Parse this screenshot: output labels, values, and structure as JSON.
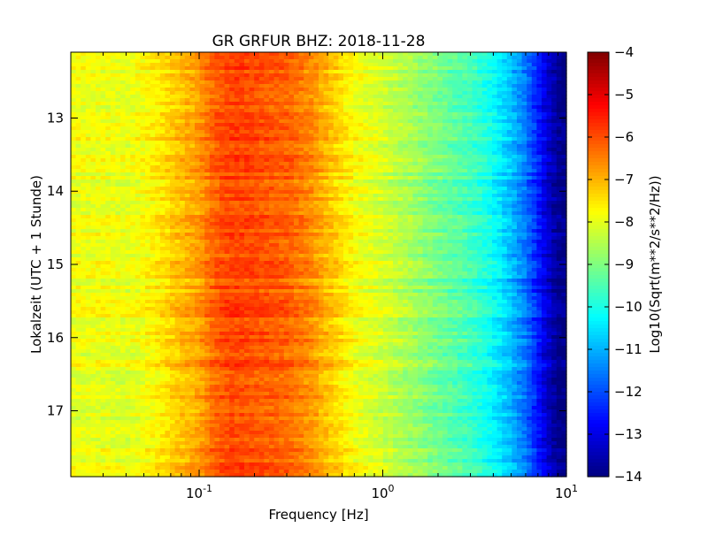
{
  "chart_data": {
    "type": "heatmap",
    "title": "GR GRFUR BHZ: 2018-11-28",
    "xlabel": "Frequency [Hz]",
    "ylabel": "Lokalzeit (UTC + 1 Stunde)",
    "x_scale": "log",
    "xlim": [
      0.02,
      10
    ],
    "x_ticks": [
      {
        "value": 0.1,
        "base": "10",
        "exp": "-1"
      },
      {
        "value": 1,
        "base": "10",
        "exp": "0"
      },
      {
        "value": 10,
        "base": "10",
        "exp": "1"
      }
    ],
    "ylim": [
      12.1,
      17.9
    ],
    "y_inverted": true,
    "y_ticks": [
      13,
      14,
      15,
      16,
      17
    ],
    "y_tick_labels": [
      "13",
      "14",
      "15",
      "16",
      "17"
    ],
    "colorbar": {
      "label": "Log10(Sqrt(m**2/s**2/Hz))",
      "range": [
        -14,
        -4
      ],
      "ticks": [
        -4,
        -5,
        -6,
        -7,
        -8,
        -9,
        -10,
        -11,
        -12,
        -13,
        -14
      ],
      "tick_labels": [
        "−4",
        "−5",
        "−6",
        "−7",
        "−8",
        "−9",
        "−10",
        "−11",
        "−12",
        "−13",
        "−14"
      ],
      "colormap": "jet"
    },
    "spectrum_profile": {
      "frequency_hz": [
        0.02,
        0.03,
        0.04,
        0.06,
        0.08,
        0.1,
        0.12,
        0.15,
        0.2,
        0.3,
        0.4,
        0.5,
        0.7,
        1.0,
        1.5,
        2.0,
        3.0,
        4.0,
        5.0,
        6.0,
        7.0,
        8.0,
        9.0,
        10.0
      ],
      "value": [
        -7.9,
        -7.9,
        -8.0,
        -7.6,
        -7.1,
        -6.8,
        -6.2,
        -5.9,
        -6.0,
        -6.2,
        -6.6,
        -7.1,
        -7.8,
        -8.2,
        -8.7,
        -9.1,
        -9.6,
        -10.2,
        -10.9,
        -11.6,
        -12.5,
        -13.3,
        -13.8,
        -14.0
      ]
    }
  }
}
